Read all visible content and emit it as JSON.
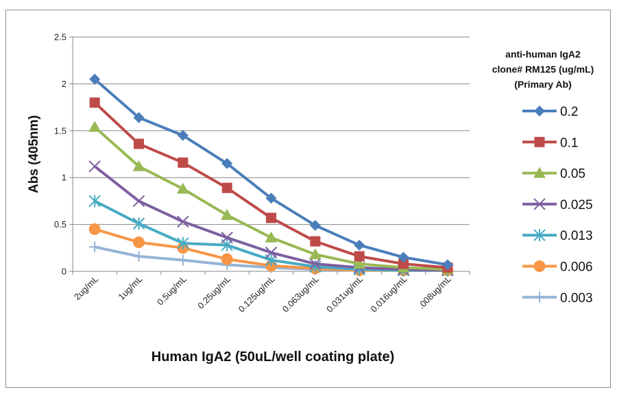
{
  "chart_data": {
    "type": "line",
    "xlabel": "Human IgA2 (50uL/well coating plate)",
    "ylabel": "Abs (405nm)",
    "ylim": [
      0,
      2.5
    ],
    "yticks": [
      0,
      0.5,
      1,
      1.5,
      2,
      2.5
    ],
    "ytick_labels": [
      "0",
      "0.5",
      "1",
      "1.5",
      "2",
      "2.5"
    ],
    "grid": "horizontal",
    "legend_position": "right",
    "legend_title": [
      "anti-human IgA2",
      "clone# RM125 (ug/mL)",
      "(Primary Ab)"
    ],
    "categories": [
      "2ug/mL",
      "1ug/mL",
      "0.5ug/mL",
      "0.25ug/mL",
      "0.125ug/mL",
      "0.063ug/mL",
      "0.031ug/mL",
      "0.016ug/mL",
      ".008ug/mL"
    ],
    "series": [
      {
        "name": "0.2",
        "color": "#4a7ebb",
        "marker": "diamond",
        "values": [
          2.05,
          1.64,
          1.45,
          1.15,
          0.78,
          0.49,
          0.28,
          0.15,
          0.07
        ]
      },
      {
        "name": "0.1",
        "color": "#be4b48",
        "marker": "square",
        "values": [
          1.8,
          1.36,
          1.16,
          0.89,
          0.57,
          0.32,
          0.16,
          0.08,
          0.04
        ]
      },
      {
        "name": "0.05",
        "color": "#98b954",
        "marker": "triangle",
        "values": [
          1.54,
          1.12,
          0.88,
          0.6,
          0.36,
          0.18,
          0.08,
          0.04,
          0.02
        ]
      },
      {
        "name": "0.025",
        "color": "#7d5fa0",
        "marker": "x",
        "values": [
          1.12,
          0.75,
          0.53,
          0.36,
          0.2,
          0.08,
          0.04,
          0.02,
          0.01
        ]
      },
      {
        "name": "0.013",
        "color": "#46aac4",
        "marker": "star",
        "values": [
          0.75,
          0.51,
          0.3,
          0.28,
          0.12,
          0.05,
          0.02,
          0.01,
          0.01
        ]
      },
      {
        "name": "0.006",
        "color": "#f79646",
        "marker": "circle",
        "values": [
          0.45,
          0.31,
          0.25,
          0.13,
          0.06,
          0.03,
          0.01,
          0.01,
          0.01
        ]
      },
      {
        "name": "0.003",
        "color": "#95b3d7",
        "marker": "plus",
        "values": [
          0.26,
          0.16,
          0.12,
          0.07,
          0.04,
          0.02,
          0.01,
          0.01,
          0.01
        ]
      }
    ]
  }
}
